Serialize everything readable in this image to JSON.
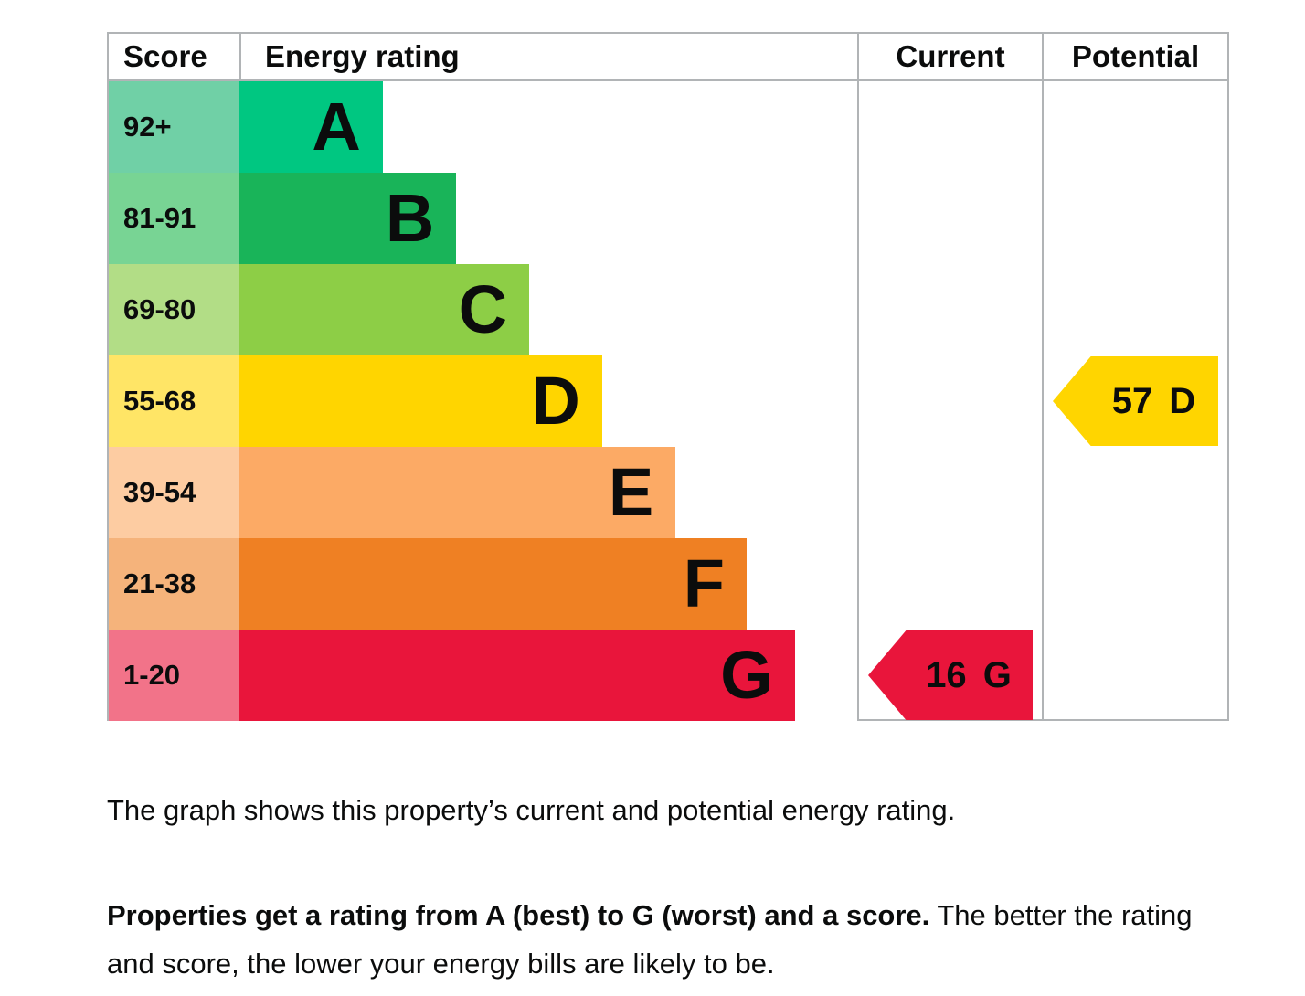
{
  "table": {
    "headers": {
      "score": "Score",
      "rating": "Energy rating",
      "current": "Current",
      "potential": "Potential"
    },
    "bands": [
      {
        "letter": "A",
        "score": "92+",
        "color": "#00c781",
        "tint": "#70d0a6",
        "width_pct": 23.2
      },
      {
        "letter": "B",
        "score": "81-91",
        "color": "#19b459",
        "tint": "#78d494",
        "width_pct": 35.1
      },
      {
        "letter": "C",
        "score": "69-80",
        "color": "#8dce46",
        "tint": "#b2dd86",
        "width_pct": 46.9
      },
      {
        "letter": "D",
        "score": "55-68",
        "color": "#ffd500",
        "tint": "#ffe566",
        "width_pct": 58.7
      },
      {
        "letter": "E",
        "score": "39-54",
        "color": "#fcaa65",
        "tint": "#fdcca2",
        "width_pct": 70.6
      },
      {
        "letter": "F",
        "score": "21-38",
        "color": "#ef8023",
        "tint": "#f5b37b",
        "width_pct": 82.1
      },
      {
        "letter": "G",
        "score": "1-20",
        "color": "#e9153b",
        "tint": "#f27389",
        "width_pct": 89.9
      }
    ],
    "current": {
      "score": "16",
      "letter": "G",
      "color": "#e9153b"
    },
    "potential": {
      "score": "57",
      "letter": "D",
      "color": "#ffd500"
    }
  },
  "caption": "The graph shows this property’s current and potential energy rating.",
  "description": {
    "bold": "Properties get a rating from A (best) to G (worst) and a score.",
    "regular": " The better the rating and score, the lower your energy bills are likely to be."
  },
  "chart_data": {
    "type": "bar",
    "columns": [
      "Score",
      "Energy rating",
      "Current",
      "Potential"
    ],
    "categories": [
      "A",
      "B",
      "C",
      "D",
      "E",
      "F",
      "G"
    ],
    "score_ranges": [
      "92+",
      "81-91",
      "69-80",
      "55-68",
      "39-54",
      "21-38",
      "1-20"
    ],
    "bar_length_pct_of_rating_column": [
      23.2,
      35.1,
      46.9,
      58.7,
      70.6,
      82.1,
      89.9
    ],
    "band_colors": [
      "#00c781",
      "#19b459",
      "#8dce46",
      "#ffd500",
      "#fcaa65",
      "#ef8023",
      "#e9153b"
    ],
    "current": {
      "score": 16,
      "band": "G",
      "arrow_color": "#e9153b",
      "row": "1-20"
    },
    "potential": {
      "score": 57,
      "band": "D",
      "arrow_color": "#ffd500",
      "row": "55-68"
    },
    "legend_position": "none",
    "grid": false
  }
}
